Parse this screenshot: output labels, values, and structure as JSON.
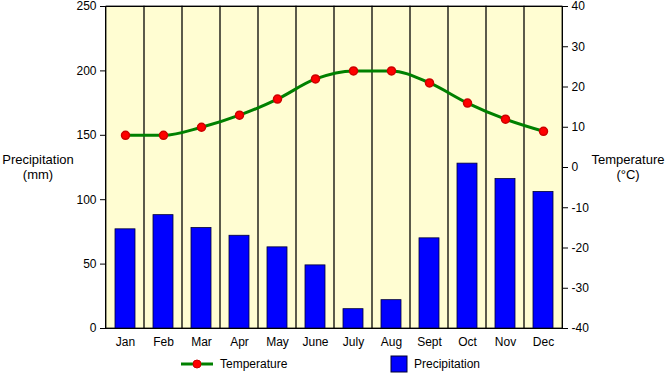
{
  "chart_data": {
    "type": "bar",
    "categories": [
      "Jan",
      "Feb",
      "Mar",
      "Apr",
      "May",
      "June",
      "July",
      "Aug",
      "Sept",
      "Oct",
      "Nov",
      "Dec"
    ],
    "y_label": "Precipitation (mm)",
    "y2_label": "Temperature (°C)",
    "ylim": [
      0,
      250
    ],
    "yticks": [
      0,
      50,
      100,
      150,
      200,
      250
    ],
    "y2lim": [
      -40,
      40
    ],
    "y2ticks": [
      -40,
      -30,
      -20,
      -10,
      0,
      10,
      20,
      30,
      40
    ],
    "legend": "bottom",
    "series": [
      {
        "name": "Temperature",
        "type": "line",
        "axis": "y2",
        "color": "#008000",
        "marker": "circle",
        "line_style": "solid",
        "values": [
          8,
          8,
          10,
          13,
          17,
          22,
          24,
          24,
          21,
          16,
          12,
          9
        ]
      },
      {
        "name": "Precipitation",
        "type": "bar",
        "color": "#0000ff",
        "values": [
          77,
          88,
          78,
          72,
          63,
          49,
          15,
          22,
          70,
          128,
          116,
          106
        ]
      }
    ]
  }
}
